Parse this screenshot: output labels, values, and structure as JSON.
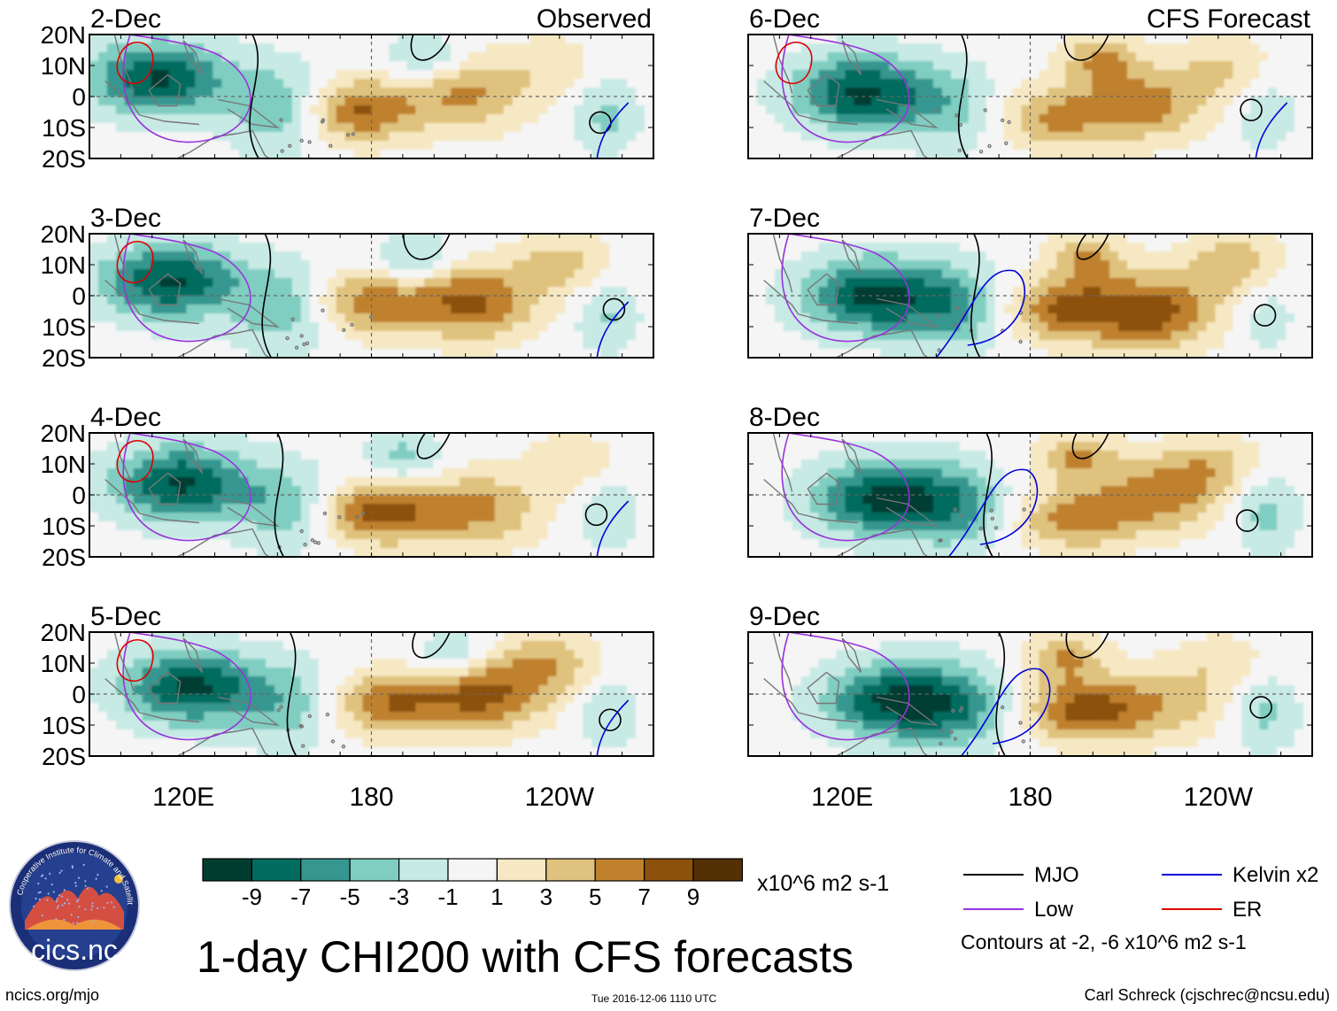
{
  "chart_data": {
    "type": "heatmap",
    "title": "1-day CHI200 with CFS forecasts",
    "variable": "CHI200",
    "units": "x10^6 m2 s-1",
    "contour_note": "Contours at -2, -6 x10^6 m2 s-1",
    "columns": [
      {
        "label": "Observed",
        "panels": [
          "2-Dec",
          "3-Dec",
          "4-Dec",
          "5-Dec"
        ]
      },
      {
        "label": "CFS Forecast",
        "panels": [
          "6-Dec",
          "7-Dec",
          "8-Dec",
          "9-Dec"
        ]
      }
    ],
    "lat_ticks": [
      "20N",
      "10N",
      "0",
      "10S",
      "20S"
    ],
    "lat_range": [
      -20,
      20
    ],
    "lon_range": [
      90,
      270
    ],
    "lon_ticks": [
      {
        "label": "120E",
        "lon": 120
      },
      {
        "label": "180",
        "lon": 180
      },
      {
        "label": "120W",
        "lon": 240
      }
    ],
    "colorbar": {
      "labels": [
        "-9",
        "-7",
        "-5",
        "-3",
        "-1",
        "1",
        "3",
        "5",
        "7",
        "9"
      ],
      "colors": [
        "#003d30",
        "#016c5f",
        "#35978f",
        "#80cdc1",
        "#c7eae5",
        "#f5f5f5",
        "#f6e8c3",
        "#dfc27d",
        "#bf812d",
        "#8c510a",
        "#543005"
      ]
    },
    "legend": [
      {
        "label": "MJO",
        "color": "#000000"
      },
      {
        "label": "Kelvin x2",
        "color": "#0000dd"
      },
      {
        "label": "Low",
        "color": "#9933dd"
      },
      {
        "label": "ER",
        "color": "#dd0000"
      }
    ]
  },
  "footer": {
    "left": "ncics.org/mjo",
    "center": "Tue 2016-12-06 1110 UTC",
    "right": "Carl Schreck (cjschrec@ncsu.edu)"
  },
  "logo": {
    "text": "cics.nc",
    "ring_text": "Cooperative Institute for Climate and Satellites"
  },
  "colors": {
    "grid_dash": "#666666",
    "coast": "#777777"
  }
}
